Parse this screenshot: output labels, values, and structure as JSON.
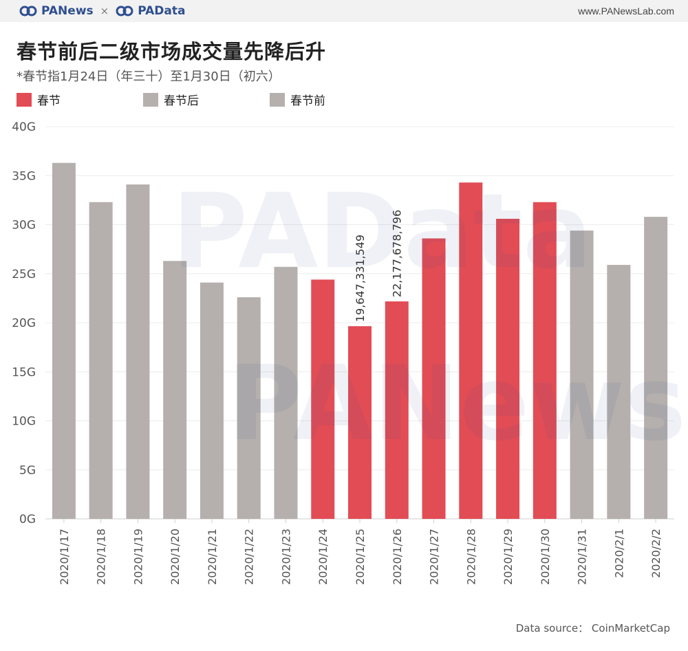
{
  "header": {
    "brand_left": "PANews",
    "brand_times": "×",
    "brand_right": "PAData",
    "site": "www.PANewsLab.com"
  },
  "colors": {
    "spring": "#e24c55",
    "after": "#b5afad",
    "before": "#b5afad",
    "brand": "#2f4f8f"
  },
  "chart_data": {
    "type": "bar",
    "title": "春节前后二级市场成交量先降后升",
    "subtitle": "*春节指1月24日（年三十）至1月30日（初六）",
    "legend": [
      {
        "label": "春节",
        "color": "#e24c55"
      },
      {
        "label": "春节后",
        "color": "#b5afad"
      },
      {
        "label": "春节前",
        "color": "#b5afad"
      }
    ],
    "categories": [
      "2020/1/17",
      "2020/1/18",
      "2020/1/19",
      "2020/1/20",
      "2020/1/21",
      "2020/1/22",
      "2020/1/23",
      "2020/1/24",
      "2020/1/25",
      "2020/1/26",
      "2020/1/27",
      "2020/1/28",
      "2020/1/29",
      "2020/1/30",
      "2020/1/31",
      "2020/2/1",
      "2020/2/2"
    ],
    "values": [
      36.3,
      32.3,
      34.1,
      26.3,
      24.1,
      22.6,
      25.7,
      24.4,
      19.647331549,
      22.177678796,
      28.6,
      34.3,
      30.6,
      32.3,
      29.4,
      25.9,
      30.8
    ],
    "groups": [
      "before",
      "before",
      "before",
      "before",
      "before",
      "before",
      "before",
      "spring",
      "spring",
      "spring",
      "spring",
      "spring",
      "spring",
      "spring",
      "after",
      "after",
      "after"
    ],
    "data_labels": {
      "8": "19,647,331,549",
      "9": "22,177,678,796"
    },
    "yticks": [
      "0G",
      "5G",
      "10G",
      "15G",
      "20G",
      "25G",
      "30G",
      "35G",
      "40G"
    ],
    "ylim": [
      0,
      40
    ],
    "grid": true,
    "source": "Data source： CoinMarketCap"
  }
}
